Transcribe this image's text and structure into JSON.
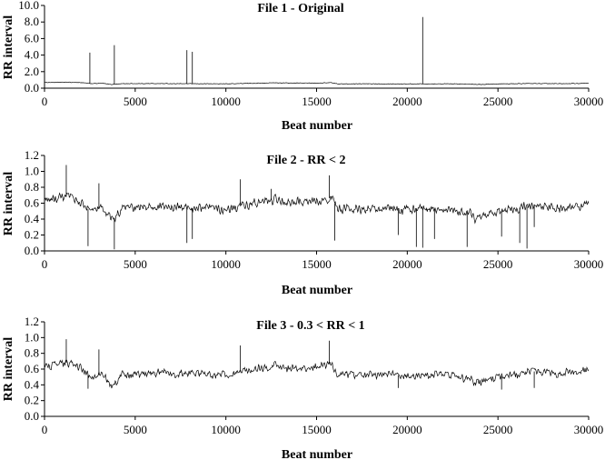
{
  "chart_data": [
    {
      "type": "line",
      "title": "File 1 - Original",
      "xlabel": "Beat number",
      "ylabel": "RR interval",
      "xlim": [
        0,
        30000
      ],
      "ylim": [
        0,
        10
      ],
      "x_ticks": [
        "0",
        "5000",
        "10000",
        "15000",
        "20000",
        "25000",
        "30000"
      ],
      "y_ticks": [
        "0.0",
        "2.0",
        "4.0",
        "6.0",
        "8.0",
        "10.0"
      ],
      "grid": false,
      "legend": "none",
      "series_color": "#000000",
      "series": [
        {
          "profile": [
            [
              0,
              0.7
            ],
            [
              600,
              0.7
            ],
            [
              1200,
              0.72
            ],
            [
              2000,
              0.68
            ],
            [
              2500,
              0.56
            ],
            [
              3200,
              0.58
            ],
            [
              3700,
              0.45
            ],
            [
              4300,
              0.55
            ],
            [
              6000,
              0.56
            ],
            [
              8000,
              0.54
            ],
            [
              10000,
              0.53
            ],
            [
              11000,
              0.57
            ],
            [
              12700,
              0.65
            ],
            [
              13500,
              0.62
            ],
            [
              15000,
              0.62
            ],
            [
              15800,
              0.67
            ],
            [
              16200,
              0.52
            ],
            [
              18000,
              0.53
            ],
            [
              20000,
              0.52
            ],
            [
              22000,
              0.53
            ],
            [
              23500,
              0.5
            ],
            [
              24000,
              0.45
            ],
            [
              25000,
              0.52
            ],
            [
              27000,
              0.57
            ],
            [
              28000,
              0.54
            ],
            [
              30000,
              0.58
            ]
          ],
          "noise": 0.04,
          "spikes": [
            [
              2500,
              4.3
            ],
            [
              3850,
              5.2
            ],
            [
              7850,
              4.6
            ],
            [
              8150,
              4.4
            ],
            [
              20850,
              8.6
            ]
          ]
        }
      ]
    },
    {
      "type": "line",
      "title": "File 2 - RR < 2",
      "xlabel": "Beat number",
      "ylabel": "RR interval",
      "xlim": [
        0,
        30000
      ],
      "ylim": [
        0,
        1.2
      ],
      "x_ticks": [
        "0",
        "5000",
        "10000",
        "15000",
        "20000",
        "25000",
        "30000"
      ],
      "y_ticks": [
        "0.0",
        "0.2",
        "0.4",
        "0.6",
        "0.8",
        "1.0",
        "1.2"
      ],
      "grid": false,
      "legend": "none",
      "series_color": "#000000",
      "series": [
        {
          "profile": [
            [
              0,
              0.64
            ],
            [
              600,
              0.65
            ],
            [
              1200,
              0.68
            ],
            [
              2000,
              0.62
            ],
            [
              2500,
              0.5
            ],
            [
              3200,
              0.54
            ],
            [
              3700,
              0.38
            ],
            [
              4300,
              0.53
            ],
            [
              6000,
              0.56
            ],
            [
              8000,
              0.54
            ],
            [
              10000,
              0.53
            ],
            [
              11000,
              0.57
            ],
            [
              12700,
              0.65
            ],
            [
              13500,
              0.6
            ],
            [
              15000,
              0.62
            ],
            [
              15800,
              0.67
            ],
            [
              16200,
              0.52
            ],
            [
              18000,
              0.53
            ],
            [
              20000,
              0.52
            ],
            [
              22000,
              0.53
            ],
            [
              23500,
              0.48
            ],
            [
              23700,
              0.4
            ],
            [
              25000,
              0.5
            ],
            [
              27000,
              0.57
            ],
            [
              28000,
              0.54
            ],
            [
              30000,
              0.58
            ]
          ],
          "noise": 0.07,
          "spikes": [
            [
              1200,
              1.08
            ],
            [
              2400,
              0.06
            ],
            [
              3000,
              0.85
            ],
            [
              3850,
              0.02
            ],
            [
              7850,
              0.1
            ],
            [
              8150,
              0.15
            ],
            [
              10800,
              0.9
            ],
            [
              12500,
              0.78
            ],
            [
              15700,
              0.95
            ],
            [
              16000,
              0.13
            ],
            [
              19500,
              0.2
            ],
            [
              20500,
              0.05
            ],
            [
              20850,
              0.04
            ],
            [
              21500,
              0.15
            ],
            [
              23300,
              0.05
            ],
            [
              25200,
              0.18
            ],
            [
              26200,
              0.1
            ],
            [
              26600,
              0.03
            ],
            [
              27000,
              0.3
            ]
          ]
        }
      ]
    },
    {
      "type": "line",
      "title": "File 3 - 0.3 < RR < 1",
      "xlabel": "Beat number",
      "ylabel": "RR interval",
      "xlim": [
        0,
        30000
      ],
      "ylim": [
        0,
        1.2
      ],
      "x_ticks": [
        "0",
        "5000",
        "10000",
        "15000",
        "20000",
        "25000",
        "30000"
      ],
      "y_ticks": [
        "0.0",
        "0.2",
        "0.4",
        "0.6",
        "0.8",
        "1.0",
        "1.2"
      ],
      "grid": false,
      "legend": "none",
      "series_color": "#000000",
      "series": [
        {
          "profile": [
            [
              0,
              0.64
            ],
            [
              600,
              0.65
            ],
            [
              1200,
              0.68
            ],
            [
              2000,
              0.62
            ],
            [
              2500,
              0.5
            ],
            [
              3200,
              0.54
            ],
            [
              3700,
              0.38
            ],
            [
              4300,
              0.53
            ],
            [
              6000,
              0.56
            ],
            [
              8000,
              0.54
            ],
            [
              10000,
              0.53
            ],
            [
              11000,
              0.57
            ],
            [
              12700,
              0.65
            ],
            [
              13500,
              0.6
            ],
            [
              15000,
              0.62
            ],
            [
              15800,
              0.67
            ],
            [
              16200,
              0.52
            ],
            [
              18000,
              0.53
            ],
            [
              20000,
              0.52
            ],
            [
              22000,
              0.53
            ],
            [
              23500,
              0.48
            ],
            [
              23700,
              0.4
            ],
            [
              25000,
              0.5
            ],
            [
              27000,
              0.57
            ],
            [
              28000,
              0.54
            ],
            [
              30000,
              0.58
            ]
          ],
          "noise": 0.06,
          "spikes": [
            [
              1200,
              0.98
            ],
            [
              3000,
              0.85
            ],
            [
              2400,
              0.35
            ],
            [
              10800,
              0.9
            ],
            [
              15700,
              0.96
            ],
            [
              19500,
              0.36
            ],
            [
              25200,
              0.34
            ],
            [
              27000,
              0.36
            ]
          ]
        }
      ]
    }
  ]
}
